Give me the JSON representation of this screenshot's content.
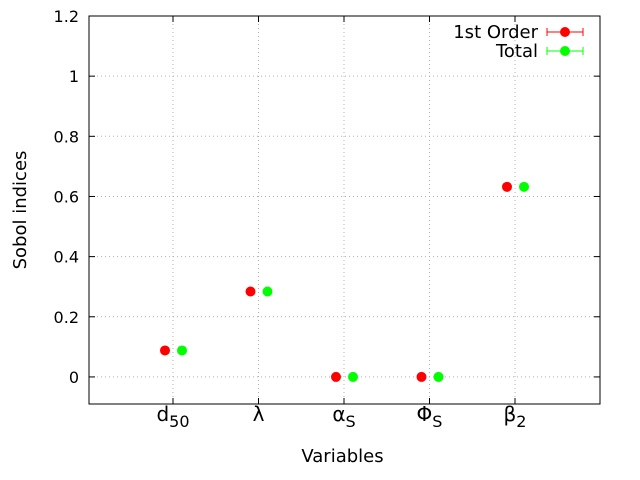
{
  "chart_data": {
    "type": "scatter",
    "title": "",
    "xlabel": "Variables",
    "ylabel": "Sobol indices",
    "ylim": [
      -0.09,
      1.2
    ],
    "yticks": [
      "0",
      "0.2",
      "0.4",
      "0.6",
      "0.8",
      "1",
      "1.2"
    ],
    "grid": true,
    "legend_position": "top-right",
    "categories": [
      {
        "base": "d",
        "sub": "50"
      },
      {
        "base": "λ",
        "sub": ""
      },
      {
        "base": "α",
        "sub": "S"
      },
      {
        "base": "Φ",
        "sub": "S"
      },
      {
        "base": "β",
        "sub": "2"
      }
    ],
    "series": [
      {
        "name": "1st Order",
        "color": "#ff0000",
        "values": [
          0.088,
          0.284,
          0.0,
          0.0,
          0.632
        ]
      },
      {
        "name": "Total",
        "color": "#00ff00",
        "values": [
          0.088,
          0.284,
          0.0,
          0.0,
          0.632
        ]
      }
    ]
  }
}
